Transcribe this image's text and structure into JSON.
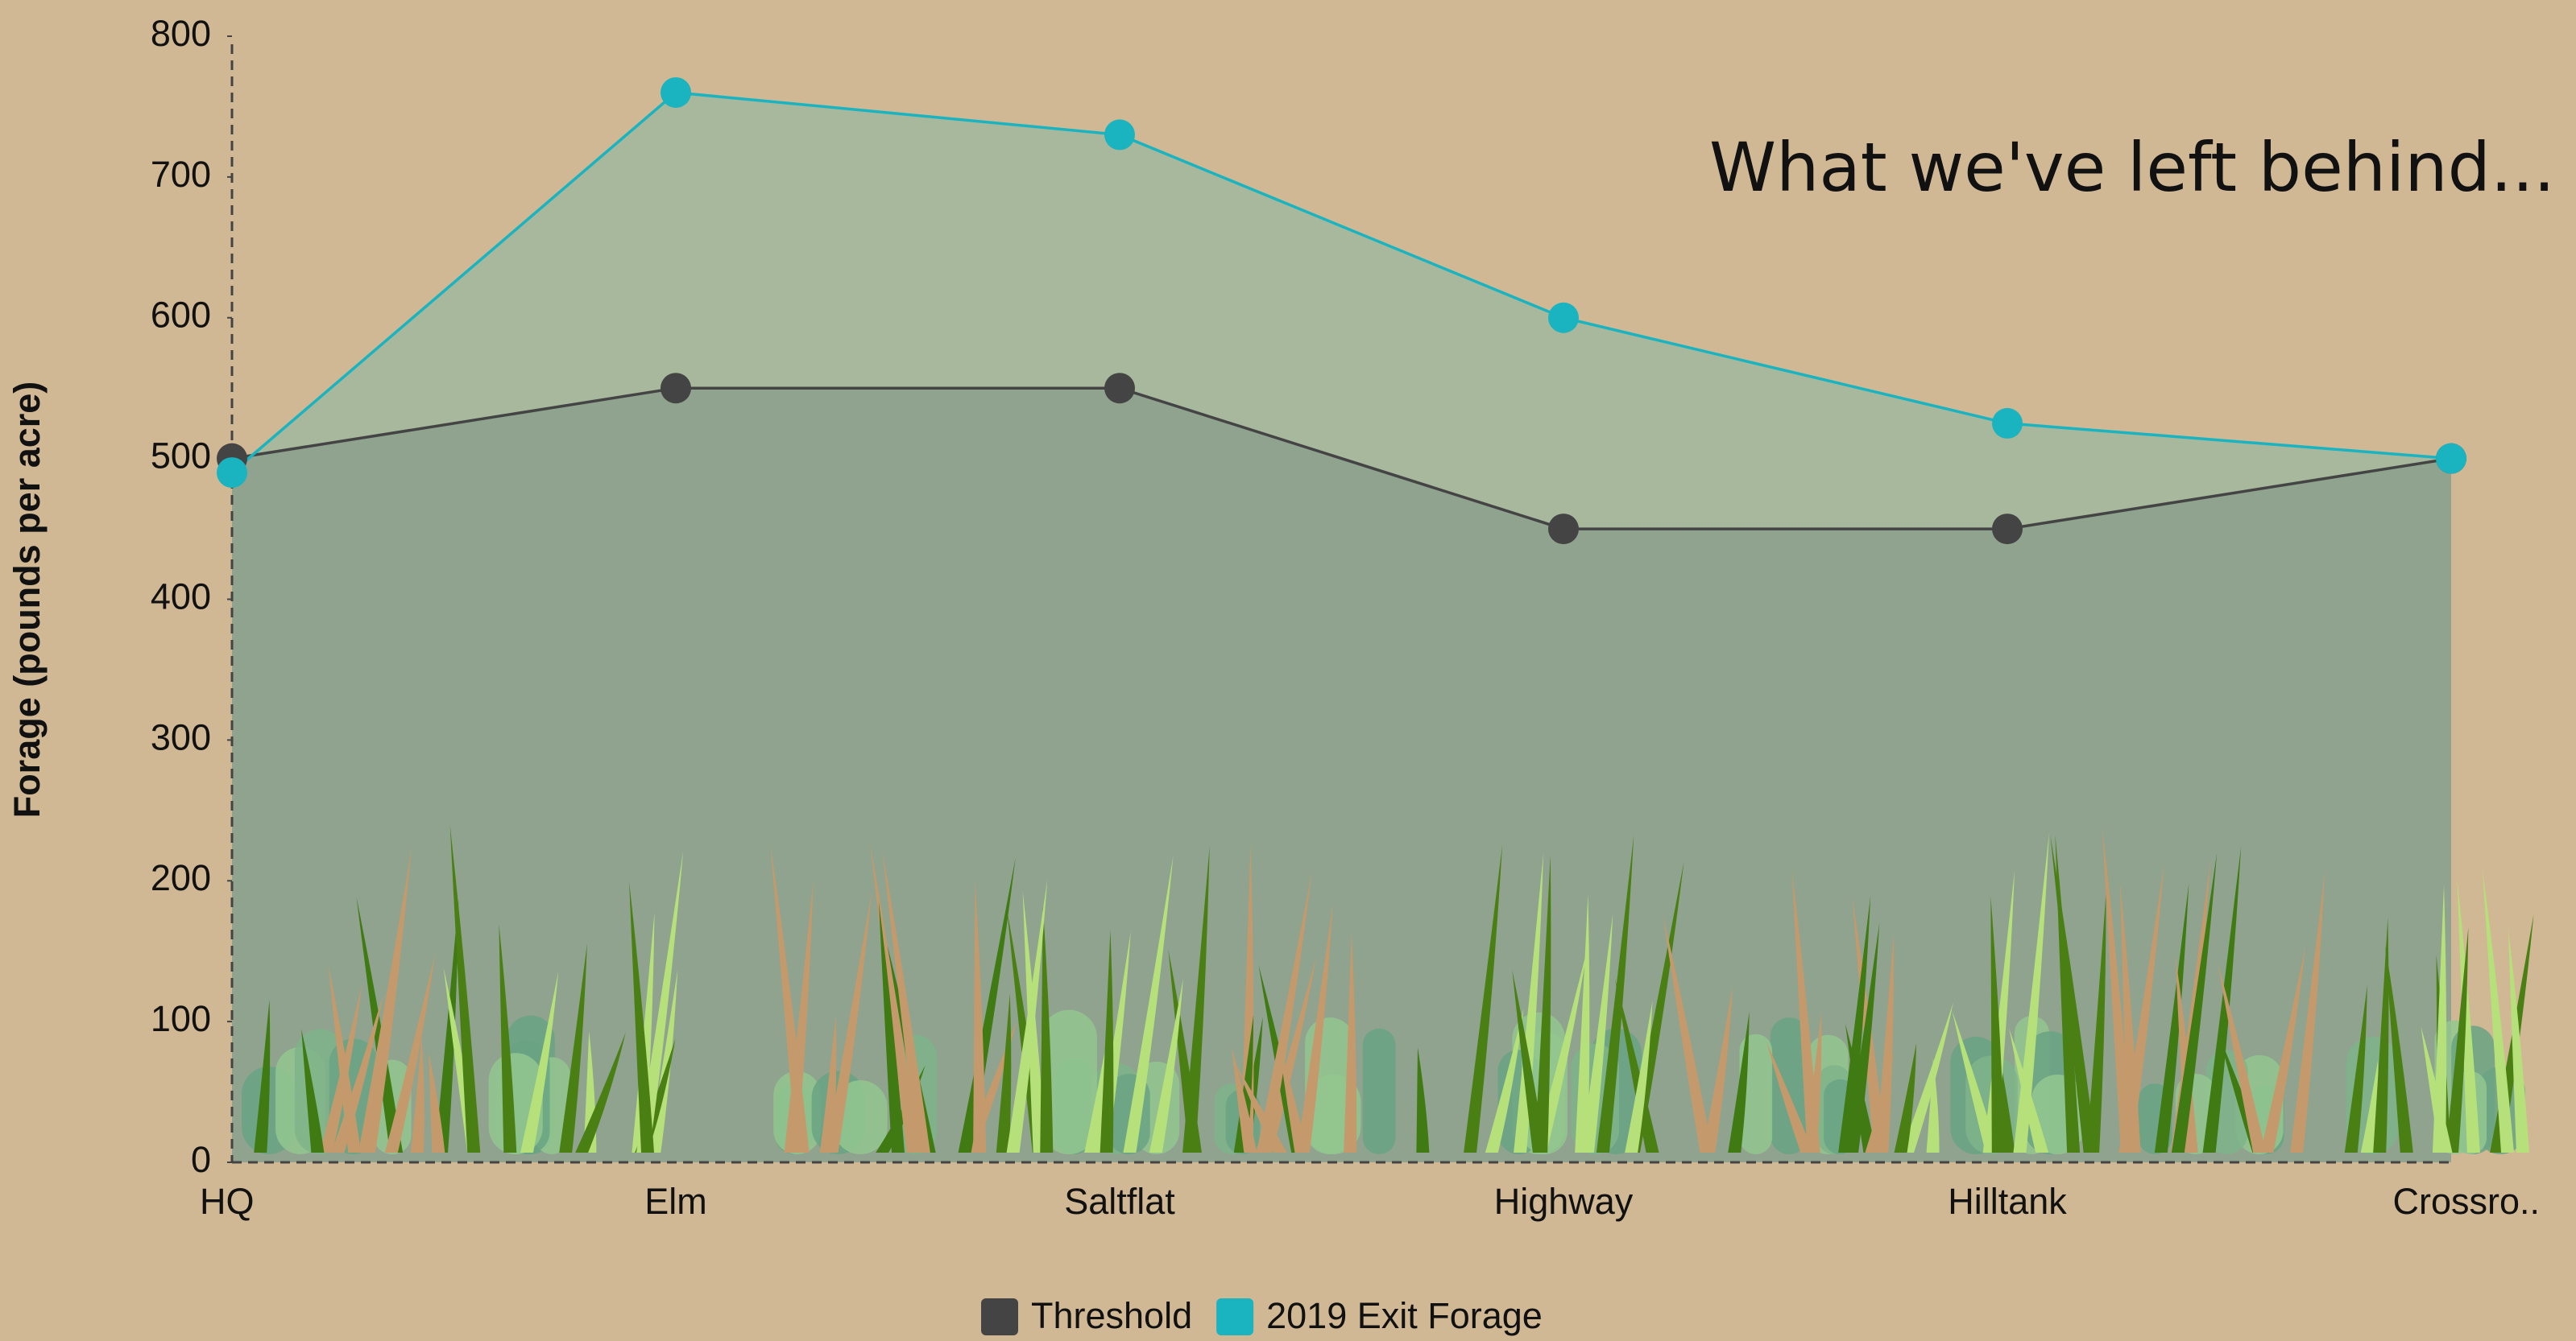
{
  "chart_data": {
    "type": "line",
    "title": "What we've left behind...",
    "y_label": "Forage (pounds per acre)",
    "categories": [
      "HQ",
      "Elm",
      "Saltflat",
      "Highway",
      "Hilltank",
      "Crossro.."
    ],
    "series": [
      {
        "name": "Threshold",
        "color": "#444444",
        "values": [
          500,
          550,
          550,
          450,
          450,
          500
        ]
      },
      {
        "name": "2019 Exit Forage",
        "color": "#1ab3c0",
        "values": [
          490,
          760,
          730,
          600,
          525,
          500
        ]
      }
    ],
    "ylim": [
      0,
      800
    ],
    "yticks": [
      0,
      100,
      200,
      300,
      400,
      500,
      600,
      700,
      800
    ],
    "legend": "bottom"
  }
}
